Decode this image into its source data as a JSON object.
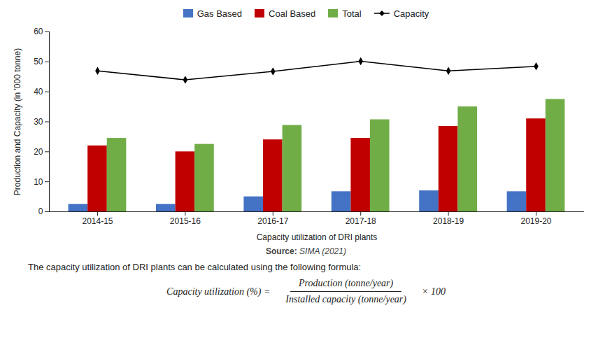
{
  "chart_data": {
    "type": "bar",
    "categories": [
      "2014-15",
      "2015-16",
      "2016-17",
      "2017-18",
      "2018-19",
      "2019-20"
    ],
    "series": [
      {
        "name": "Gas Based",
        "color": "#4472C4",
        "values": [
          2.5,
          2.5,
          5.0,
          6.7,
          7.0,
          6.7
        ]
      },
      {
        "name": "Coal Based",
        "color": "#C00000",
        "values": [
          22.0,
          20.0,
          24.0,
          24.5,
          28.5,
          31.0
        ]
      },
      {
        "name": "Total",
        "color": "#70AD47",
        "values": [
          24.5,
          22.5,
          28.8,
          30.7,
          35.0,
          37.5
        ]
      },
      {
        "name": "Capacity",
        "type": "line",
        "color": "#000000",
        "marker": "diamond",
        "values": [
          47.0,
          44.0,
          46.8,
          50.2,
          47.0,
          48.5
        ]
      }
    ],
    "ylabel": "Production and Capacity (in '000 tonne)",
    "xlabel": "Capacity utilization of DRI plants",
    "ylim": [
      0,
      60
    ],
    "yticks": [
      0,
      10,
      20,
      30,
      40,
      50,
      60
    ],
    "grid": false,
    "legend": "top",
    "annotations": {
      "source": [
        "Source:",
        "SIMA (2021)"
      ],
      "caption": "The capacity utilization of DRI plants can be calculated using the following formula:",
      "formula": {
        "lhs": "Capacity utilization (%) =",
        "numerator": "Production (tonne/year)",
        "denominator": "Installed capacity (tonne/year)",
        "rhs": "× 100"
      }
    }
  }
}
